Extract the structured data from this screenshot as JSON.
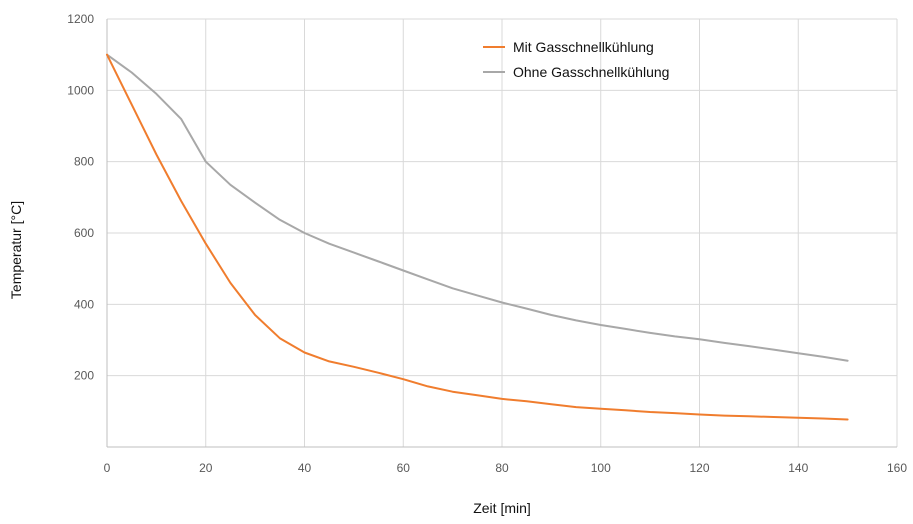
{
  "chart_data": {
    "type": "line",
    "title": "",
    "xlabel": "Zeit [min]",
    "ylabel": "Temperatur [°C]",
    "xlim": [
      0,
      160
    ],
    "ylim": [
      0,
      1200
    ],
    "x_ticks": [
      0,
      20,
      40,
      60,
      80,
      100,
      120,
      140,
      160
    ],
    "y_ticks": [
      200,
      400,
      600,
      800,
      1000,
      1200
    ],
    "grid": true,
    "legend_position": "top-right",
    "series": [
      {
        "name": "Mit Gasschnellkühlung",
        "color": "#f07d2e",
        "points": [
          [
            0,
            1100
          ],
          [
            5,
            960
          ],
          [
            10,
            820
          ],
          [
            15,
            690
          ],
          [
            20,
            570
          ],
          [
            25,
            460
          ],
          [
            30,
            370
          ],
          [
            35,
            305
          ],
          [
            40,
            265
          ],
          [
            45,
            240
          ],
          [
            50,
            225
          ],
          [
            55,
            208
          ],
          [
            60,
            190
          ],
          [
            65,
            170
          ],
          [
            70,
            155
          ],
          [
            75,
            145
          ],
          [
            80,
            135
          ],
          [
            85,
            128
          ],
          [
            90,
            120
          ],
          [
            95,
            112
          ],
          [
            100,
            107
          ],
          [
            105,
            103
          ],
          [
            110,
            98
          ],
          [
            115,
            95
          ],
          [
            120,
            91
          ],
          [
            125,
            88
          ],
          [
            130,
            86
          ],
          [
            135,
            84
          ],
          [
            140,
            82
          ],
          [
            145,
            80
          ],
          [
            150,
            77
          ]
        ]
      },
      {
        "name": "Ohne Gasschnellkühlung",
        "color": "#a8a8a8",
        "points": [
          [
            0,
            1100
          ],
          [
            5,
            1050
          ],
          [
            10,
            990
          ],
          [
            15,
            920
          ],
          [
            20,
            800
          ],
          [
            25,
            735
          ],
          [
            30,
            685
          ],
          [
            35,
            637
          ],
          [
            40,
            600
          ],
          [
            45,
            570
          ],
          [
            50,
            545
          ],
          [
            55,
            520
          ],
          [
            60,
            495
          ],
          [
            65,
            470
          ],
          [
            70,
            445
          ],
          [
            75,
            425
          ],
          [
            80,
            405
          ],
          [
            85,
            388
          ],
          [
            90,
            370
          ],
          [
            95,
            355
          ],
          [
            100,
            342
          ],
          [
            105,
            331
          ],
          [
            110,
            320
          ],
          [
            115,
            310
          ],
          [
            120,
            302
          ],
          [
            125,
            292
          ],
          [
            130,
            283
          ],
          [
            135,
            273
          ],
          [
            140,
            263
          ],
          [
            145,
            253
          ],
          [
            150,
            242
          ]
        ]
      }
    ]
  }
}
